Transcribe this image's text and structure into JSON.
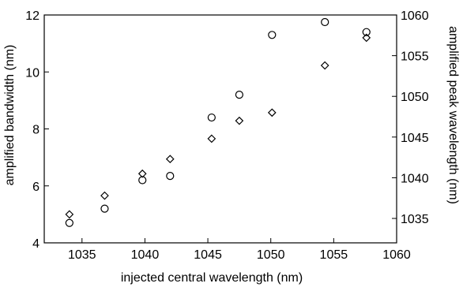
{
  "chart_data": {
    "type": "scatter",
    "xlabel": "injected central wavelength (nm)",
    "ylabel": "amplified bandwidth (nm)",
    "y2label": "amplified peak wavelength (nm)",
    "xlim": [
      1032,
      1060
    ],
    "ylim": [
      4,
      12
    ],
    "y2lim": [
      1032,
      1060
    ],
    "x_ticks": [
      1035,
      1040,
      1045,
      1050,
      1055,
      1060
    ],
    "y_ticks": [
      4,
      6,
      8,
      10,
      12
    ],
    "y2_ticks": [
      1035,
      1040,
      1045,
      1050,
      1055,
      1060
    ],
    "grid": false,
    "series": [
      {
        "marker": "circle",
        "axis": "left",
        "color": "#000000",
        "x": [
          1034.0,
          1036.8,
          1039.8,
          1042.0,
          1045.3,
          1047.5,
          1050.1,
          1054.3,
          1057.6
        ],
        "y": [
          4.7,
          5.2,
          6.2,
          6.35,
          8.4,
          9.2,
          11.3,
          11.75,
          11.4
        ]
      },
      {
        "marker": "diamond",
        "axis": "right",
        "color": "#000000",
        "x": [
          1034.0,
          1036.8,
          1039.8,
          1042.0,
          1045.3,
          1047.5,
          1050.1,
          1054.3,
          1057.6
        ],
        "y": [
          1035.5,
          1037.8,
          1040.5,
          1042.3,
          1044.8,
          1047.0,
          1048.0,
          1053.8,
          1057.2
        ]
      }
    ]
  }
}
